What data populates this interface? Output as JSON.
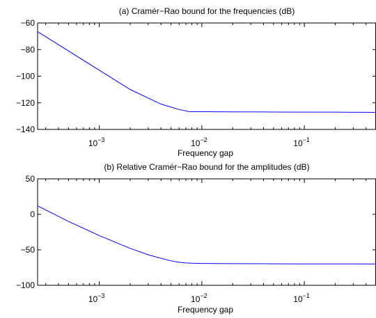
{
  "chart_data": [
    {
      "type": "line",
      "title": "(a) Cramér−Rao bound for the frequencies (dB)",
      "xlabel": "Frequency gap",
      "ylabel": "",
      "xscale": "log",
      "xlim": [
        0.00025,
        0.5
      ],
      "ylim": [
        -140,
        -60
      ],
      "xticks": [
        {
          "value": 0.001,
          "base": "10",
          "exp": "−3"
        },
        {
          "value": 0.01,
          "base": "10",
          "exp": "−2"
        },
        {
          "value": 0.1,
          "base": "10",
          "exp": "−1"
        }
      ],
      "yticks": [
        {
          "value": -60,
          "label": "−60"
        },
        {
          "value": -80,
          "label": "−80"
        },
        {
          "value": -100,
          "label": "−100"
        },
        {
          "value": -120,
          "label": "−120"
        },
        {
          "value": -140,
          "label": "−140"
        }
      ],
      "color": "#0000ff",
      "x": [
        0.00025,
        0.0005,
        0.001,
        0.002,
        0.004,
        0.006,
        0.0075,
        0.0085,
        0.01,
        0.02,
        0.05,
        0.1,
        0.2,
        0.5
      ],
      "y": [
        -66.5,
        -81,
        -95.5,
        -110,
        -121,
        -125,
        -126.6,
        -126.7,
        -126.7,
        -126.8,
        -126.9,
        -127.0,
        -127.0,
        -127.2
      ]
    },
    {
      "type": "line",
      "title": "(b) Relative Cramér−Rao bound for the amplitudes (dB)",
      "xlabel": "Frequency gap",
      "ylabel": "",
      "xscale": "log",
      "xlim": [
        0.00025,
        0.5
      ],
      "ylim": [
        -100,
        50
      ],
      "xticks": [
        {
          "value": 0.001,
          "base": "10",
          "exp": "−3"
        },
        {
          "value": 0.01,
          "base": "10",
          "exp": "−2"
        },
        {
          "value": 0.1,
          "base": "10",
          "exp": "−1"
        }
      ],
      "yticks": [
        {
          "value": 50,
          "label": "50"
        },
        {
          "value": 0,
          "label": "0"
        },
        {
          "value": -50,
          "label": "−50"
        },
        {
          "value": -100,
          "label": "−100"
        }
      ],
      "color": "#0000ff",
      "x": [
        0.00025,
        0.0005,
        0.001,
        0.002,
        0.003,
        0.004,
        0.005,
        0.006,
        0.007,
        0.0085,
        0.01,
        0.02,
        0.05,
        0.1,
        0.2,
        0.5
      ],
      "y": [
        12,
        -10,
        -30,
        -48,
        -57,
        -62,
        -65.5,
        -67.5,
        -68.5,
        -69,
        -69.2,
        -69.5,
        -69.7,
        -69.8,
        -69.8,
        -70
      ]
    }
  ]
}
